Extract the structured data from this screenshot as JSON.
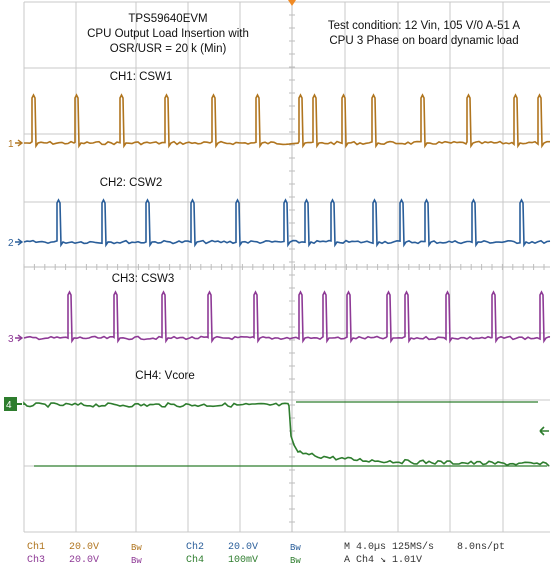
{
  "title_block": {
    "line1": "TPS59640EVM",
    "line2": "CPU Output Load Insertion with",
    "line3": "OSR/USR = 20 k (Min)"
  },
  "test_block": {
    "line1": "Test condition: 12 Vin, 105 V/0 A-51 A",
    "line2": "CPU 3 Phase on board dynamic load"
  },
  "channels": [
    {
      "label": "CH1: CSW1",
      "marker": "1",
      "color": "#b0751f"
    },
    {
      "label": "CH2: CSW2",
      "marker": "2",
      "color": "#2a5e9a"
    },
    {
      "label": "CH3: CSW3",
      "marker": "3",
      "color": "#8e3a96"
    },
    {
      "label": "CH4: Vcore",
      "marker": "4",
      "color": "#2e7d2e"
    }
  ],
  "readout": {
    "row1": {
      "ch_a": "Ch1",
      "v_a": "20.0V",
      "bw_a": "Bw",
      "ch_b": "Ch2",
      "v_b": "20.0V",
      "bw_b": "Bw",
      "timebase": "M 4.0µs 125MS/s",
      "res": "8.0ns/pt"
    },
    "row2": {
      "ch_a": "Ch3",
      "v_a": "20.0V",
      "bw_a": "Bw",
      "ch_b": "Ch4",
      "v_b": "100mV",
      "bw_b": "Bw",
      "trigger": "A  Ch4  ↘  1.01V"
    }
  },
  "colors": {
    "grid": "#c9c9c9",
    "ch1": "#b0751f",
    "ch2": "#2a5e9a",
    "ch3": "#8e3a96",
    "ch4": "#2e7d2e",
    "trigger": "#f08a24"
  }
}
